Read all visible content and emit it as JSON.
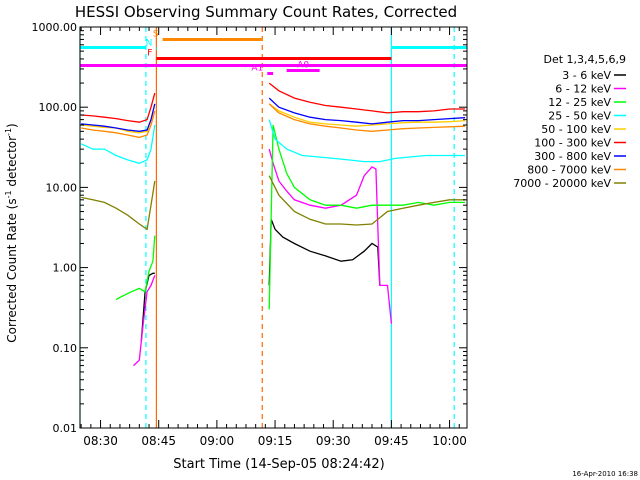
{
  "chart_data": {
    "type": "line",
    "title": "HESSI Observing Summary Count Rates, Corrected",
    "ylabel_main": "Corrected Count Rate (s",
    "ylabel_sup1": "-1",
    "ylabel_mid": " detector",
    "ylabel_sup2": "-1",
    "ylabel_end": ")",
    "xlabel": "Start Time (14-Sep-05 08:24:42)",
    "footer_date": "16-Apr-2010 16:38",
    "y_scale": "log",
    "ylim": [
      0.01,
      1000
    ],
    "xlim_minutes": [
      24.7,
      124.5
    ],
    "y_ticks": [
      {
        "v": 1000,
        "label": "1000.00"
      },
      {
        "v": 100,
        "label": "100.00"
      },
      {
        "v": 10,
        "label": "10.00"
      },
      {
        "v": 1,
        "label": "1.00"
      },
      {
        "v": 0.1,
        "label": "0.10"
      },
      {
        "v": 0.01,
        "label": "0.01"
      }
    ],
    "x_ticks": [
      {
        "m": 30,
        "label": "08:30"
      },
      {
        "m": 45,
        "label": "08:45"
      },
      {
        "m": 60,
        "label": "09:00"
      },
      {
        "m": 75,
        "label": "09:15"
      },
      {
        "m": 90,
        "label": "09:30"
      },
      {
        "m": 105,
        "label": "09:45"
      },
      {
        "m": 120,
        "label": "10:00"
      }
    ],
    "legend_title": "Det 1,3,4,5,6,9",
    "legend_placement": "right",
    "series": [
      {
        "name": "3 - 6 keV",
        "color": "#000000",
        "seg1": [
          [
            40.5,
            0.12
          ],
          [
            41.5,
            0.5
          ],
          [
            42.5,
            0.8
          ],
          [
            43.5,
            0.85
          ],
          [
            44.0,
            0.85
          ]
        ],
        "seg2": [
          [
            73.5,
            0.6
          ],
          [
            74.0,
            4.0
          ],
          [
            75,
            3.0
          ],
          [
            77,
            2.4
          ],
          [
            80,
            2.0
          ],
          [
            84,
            1.6
          ],
          [
            88,
            1.4
          ],
          [
            92,
            1.2
          ],
          [
            95,
            1.25
          ],
          [
            98,
            1.6
          ],
          [
            100,
            2.0
          ],
          [
            101.5,
            1.8
          ],
          [
            102,
            0.6
          ]
        ]
      },
      {
        "name": "6 - 12 keV",
        "color": "#ff00ff",
        "seg1": [
          [
            38.5,
            0.06
          ],
          [
            40,
            0.07
          ],
          [
            41,
            0.2
          ],
          [
            42,
            0.5
          ],
          [
            43,
            0.6
          ],
          [
            44,
            0.8
          ]
        ],
        "seg2": [
          [
            73.5,
            30
          ],
          [
            74.5,
            20
          ],
          [
            76,
            12
          ],
          [
            78,
            9
          ],
          [
            80,
            7
          ],
          [
            84,
            6
          ],
          [
            88,
            5.5
          ],
          [
            92,
            6
          ],
          [
            96,
            8
          ],
          [
            98,
            14
          ],
          [
            100,
            18
          ],
          [
            101,
            17
          ],
          [
            102,
            0.6
          ],
          [
            104,
            0.6
          ],
          [
            105,
            0.2
          ]
        ]
      },
      {
        "name": "12 - 25 keV",
        "color": "#00ff00",
        "seg1": [
          [
            34,
            0.4
          ],
          [
            36,
            0.45
          ],
          [
            38,
            0.5
          ],
          [
            40,
            0.55
          ],
          [
            41.5,
            0.5
          ],
          [
            42.5,
            0.9
          ],
          [
            43.5,
            1.2
          ],
          [
            44,
            2.5
          ]
        ],
        "seg2": [
          [
            73.5,
            0.3
          ],
          [
            74.5,
            60
          ],
          [
            76,
            30
          ],
          [
            78,
            15
          ],
          [
            80,
            10
          ],
          [
            84,
            7
          ],
          [
            88,
            6
          ],
          [
            92,
            6
          ],
          [
            96,
            5.5
          ],
          [
            100,
            6
          ],
          [
            104,
            6
          ],
          [
            108,
            6
          ],
          [
            112,
            6.5
          ],
          [
            116,
            6
          ],
          [
            120,
            6.5
          ],
          [
            124,
            6.5
          ]
        ]
      },
      {
        "name": "25 - 50 keV",
        "color": "#00ffff",
        "seg1": [
          [
            25,
            35
          ],
          [
            28,
            30
          ],
          [
            31,
            30
          ],
          [
            34,
            25
          ],
          [
            37,
            22
          ],
          [
            40,
            20
          ],
          [
            42,
            22
          ],
          [
            43,
            30
          ],
          [
            44,
            60
          ]
        ],
        "seg2": [
          [
            73.5,
            70
          ],
          [
            75,
            40
          ],
          [
            78,
            30
          ],
          [
            82,
            25
          ],
          [
            86,
            24
          ],
          [
            90,
            23
          ],
          [
            94,
            22
          ],
          [
            98,
            21
          ],
          [
            102,
            21
          ],
          [
            106,
            23
          ],
          [
            110,
            24
          ],
          [
            114,
            25
          ],
          [
            118,
            25
          ],
          [
            122,
            25
          ],
          [
            124,
            25
          ]
        ]
      },
      {
        "name": "50 - 100 keV",
        "color": "#ffcc00",
        "seg1": [
          [
            25,
            60
          ],
          [
            28,
            58
          ],
          [
            31,
            56
          ],
          [
            34,
            55
          ],
          [
            37,
            50
          ],
          [
            40,
            48
          ],
          [
            42,
            50
          ],
          [
            43,
            70
          ],
          [
            44,
            110
          ]
        ],
        "seg2": [
          [
            73.5,
            110
          ],
          [
            76,
            90
          ],
          [
            80,
            75
          ],
          [
            84,
            65
          ],
          [
            88,
            62
          ],
          [
            92,
            60
          ],
          [
            96,
            58
          ],
          [
            100,
            60
          ],
          [
            104,
            62
          ],
          [
            108,
            64
          ],
          [
            112,
            65
          ],
          [
            116,
            65
          ],
          [
            120,
            66
          ],
          [
            124,
            68
          ]
        ]
      },
      {
        "name": "100 - 300 keV",
        "color": "#ff0000",
        "seg1": [
          [
            25,
            80
          ],
          [
            28,
            78
          ],
          [
            31,
            75
          ],
          [
            34,
            72
          ],
          [
            37,
            68
          ],
          [
            40,
            65
          ],
          [
            42,
            70
          ],
          [
            43,
            100
          ],
          [
            44,
            150
          ]
        ],
        "seg2": [
          [
            73.5,
            200
          ],
          [
            76,
            160
          ],
          [
            80,
            130
          ],
          [
            84,
            115
          ],
          [
            88,
            105
          ],
          [
            92,
            100
          ],
          [
            96,
            95
          ],
          [
            100,
            90
          ],
          [
            104,
            85
          ],
          [
            108,
            88
          ],
          [
            112,
            88
          ],
          [
            116,
            90
          ],
          [
            120,
            95
          ],
          [
            124,
            95
          ]
        ]
      },
      {
        "name": "300 - 800 keV",
        "color": "#0000ff",
        "seg1": [
          [
            25,
            62
          ],
          [
            28,
            60
          ],
          [
            31,
            58
          ],
          [
            34,
            55
          ],
          [
            37,
            52
          ],
          [
            40,
            50
          ],
          [
            42,
            52
          ],
          [
            43,
            70
          ],
          [
            44,
            110
          ]
        ],
        "seg2": [
          [
            73.5,
            130
          ],
          [
            76,
            100
          ],
          [
            80,
            85
          ],
          [
            84,
            75
          ],
          [
            88,
            70
          ],
          [
            92,
            68
          ],
          [
            96,
            65
          ],
          [
            100,
            62
          ],
          [
            104,
            65
          ],
          [
            108,
            68
          ],
          [
            112,
            68
          ],
          [
            116,
            70
          ],
          [
            120,
            72
          ],
          [
            124,
            74
          ]
        ]
      },
      {
        "name": "800 - 7000 keV",
        "color": "#ff8800",
        "seg1": [
          [
            25,
            55
          ],
          [
            28,
            52
          ],
          [
            31,
            50
          ],
          [
            34,
            48
          ],
          [
            37,
            45
          ],
          [
            40,
            42
          ],
          [
            42,
            45
          ],
          [
            43,
            60
          ],
          [
            44,
            90
          ]
        ],
        "seg2": [
          [
            73.5,
            110
          ],
          [
            76,
            85
          ],
          [
            80,
            70
          ],
          [
            84,
            62
          ],
          [
            88,
            58
          ],
          [
            92,
            55
          ],
          [
            96,
            52
          ],
          [
            100,
            50
          ],
          [
            104,
            52
          ],
          [
            108,
            54
          ],
          [
            112,
            55
          ],
          [
            116,
            56
          ],
          [
            120,
            57
          ],
          [
            124,
            58
          ]
        ]
      },
      {
        "name": "7000 - 20000 keV",
        "color": "#808000",
        "seg1": [
          [
            25,
            7.5
          ],
          [
            28,
            7
          ],
          [
            31,
            6.5
          ],
          [
            34,
            5.5
          ],
          [
            37,
            4.5
          ],
          [
            40,
            3.5
          ],
          [
            42,
            3.0
          ],
          [
            43,
            6
          ],
          [
            44,
            12
          ]
        ],
        "seg2": [
          [
            73.5,
            14
          ],
          [
            76,
            8
          ],
          [
            80,
            5
          ],
          [
            84,
            4
          ],
          [
            88,
            3.5
          ],
          [
            92,
            3.5
          ],
          [
            96,
            3.4
          ],
          [
            100,
            3.5
          ],
          [
            104,
            5
          ],
          [
            108,
            5.5
          ],
          [
            112,
            6
          ],
          [
            116,
            6.5
          ],
          [
            120,
            7
          ],
          [
            124,
            7
          ]
        ]
      }
    ],
    "vlines": [
      {
        "m": 24.7,
        "color": "#00ffff",
        "dash": false
      },
      {
        "m": 41.7,
        "color": "#00ffff",
        "dash": true
      },
      {
        "m": 44.4,
        "color": "#ff6600",
        "dash": false
      },
      {
        "m": 71.7,
        "color": "#ff6600",
        "dash": true
      },
      {
        "m": 105.0,
        "color": "#00ffff",
        "dash": false
      },
      {
        "m": 121.2,
        "color": "#00ffff",
        "dash": true
      }
    ],
    "flag_bars": [
      {
        "label": "",
        "color": "#00ffff",
        "y": 47.5,
        "m1": 24.7,
        "m2": 41.7
      },
      {
        "label": "",
        "color": "#00ffff",
        "y": 47.5,
        "m1": 105.0,
        "m2": 124.5
      },
      {
        "label": "S",
        "color": "#ff8800",
        "y": 39.5,
        "m1": 46.0,
        "m2": 71.7
      },
      {
        "label": "N",
        "color": "#00ffff",
        "y": 48.5,
        "m1": 44.4,
        "m2": 44.6
      },
      {
        "label": "F",
        "color": "#ff0000",
        "y": 58.5,
        "m1": 44.4,
        "m2": 105.0
      },
      {
        "label": "",
        "color": "#ff00ff",
        "y": 65.5,
        "m1": 24.7,
        "m2": 124.5
      },
      {
        "label": "A0",
        "color": "#ff00ff",
        "y": 70.5,
        "m1": 78.0,
        "m2": 86.5
      },
      {
        "label": "A1",
        "color": "#ff00ff",
        "y": 73.5,
        "m1": 73.0,
        "m2": 74.5
      }
    ]
  }
}
